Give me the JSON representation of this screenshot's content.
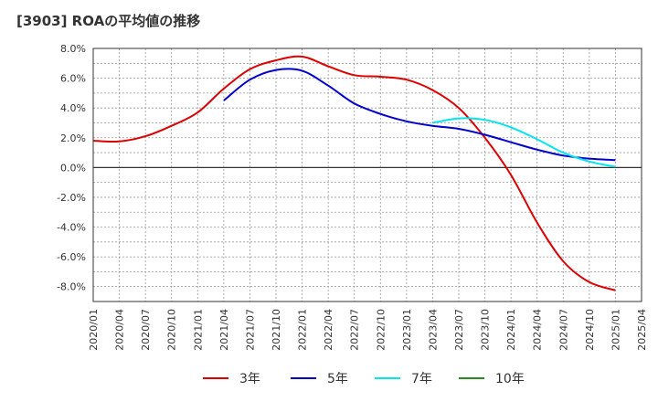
{
  "chart_data": {
    "type": "line",
    "title": "[3903]  ROAの平均値の推移",
    "xlabel": "",
    "ylabel": "",
    "ylim": [
      -9.0,
      8.0
    ],
    "grid": true,
    "legend_position": "bottom",
    "y_ticks": [
      "8.0%",
      "6.0%",
      "4.0%",
      "2.0%",
      "0.0%",
      "-2.0%",
      "-4.0%",
      "-6.0%",
      "-8.0%"
    ],
    "y_tick_values": [
      8,
      6,
      4,
      2,
      0,
      -2,
      -4,
      -6,
      -8
    ],
    "x_ticks": [
      "2020/01",
      "2020/04",
      "2020/07",
      "2020/10",
      "2021/01",
      "2021/04",
      "2021/07",
      "2021/10",
      "2022/01",
      "2022/04",
      "2022/07",
      "2022/10",
      "2023/01",
      "2023/04",
      "2023/07",
      "2023/10",
      "2024/01",
      "2024/04",
      "2024/07",
      "2024/10",
      "2025/01",
      "2025/04"
    ],
    "series": [
      {
        "name": "3年",
        "color": "#dd0000",
        "points": [
          [
            "2020/01",
            1.8
          ],
          [
            "2020/04",
            1.75
          ],
          [
            "2020/07",
            2.1
          ],
          [
            "2020/10",
            2.8
          ],
          [
            "2021/01",
            3.7
          ],
          [
            "2021/04",
            5.3
          ],
          [
            "2021/07",
            6.6
          ],
          [
            "2021/10",
            7.2
          ],
          [
            "2022/01",
            7.45
          ],
          [
            "2022/04",
            6.8
          ],
          [
            "2022/07",
            6.2
          ],
          [
            "2022/10",
            6.1
          ],
          [
            "2023/01",
            5.9
          ],
          [
            "2023/04",
            5.2
          ],
          [
            "2023/07",
            4.0
          ],
          [
            "2023/10",
            2.0
          ],
          [
            "2024/01",
            -0.5
          ],
          [
            "2024/04",
            -3.7
          ],
          [
            "2024/07",
            -6.3
          ],
          [
            "2024/10",
            -7.7
          ],
          [
            "2025/01",
            -8.25
          ]
        ]
      },
      {
        "name": "5年",
        "color": "#0000cc",
        "points": [
          [
            "2021/04",
            4.5
          ],
          [
            "2021/07",
            5.9
          ],
          [
            "2021/10",
            6.55
          ],
          [
            "2022/01",
            6.5
          ],
          [
            "2022/04",
            5.5
          ],
          [
            "2022/07",
            4.3
          ],
          [
            "2022/10",
            3.6
          ],
          [
            "2023/01",
            3.1
          ],
          [
            "2023/04",
            2.8
          ],
          [
            "2023/07",
            2.6
          ],
          [
            "2023/10",
            2.2
          ],
          [
            "2024/01",
            1.7
          ],
          [
            "2024/04",
            1.2
          ],
          [
            "2024/07",
            0.8
          ],
          [
            "2024/10",
            0.6
          ],
          [
            "2025/01",
            0.5
          ]
        ]
      },
      {
        "name": "7年",
        "color": "#00e5ee",
        "points": [
          [
            "2023/04",
            3.0
          ],
          [
            "2023/07",
            3.3
          ],
          [
            "2023/10",
            3.2
          ],
          [
            "2024/01",
            2.7
          ],
          [
            "2024/04",
            1.9
          ],
          [
            "2024/07",
            1.0
          ],
          [
            "2024/10",
            0.4
          ],
          [
            "2025/01",
            0.05
          ]
        ]
      },
      {
        "name": "10年",
        "color": "#228b22",
        "points": []
      }
    ]
  }
}
